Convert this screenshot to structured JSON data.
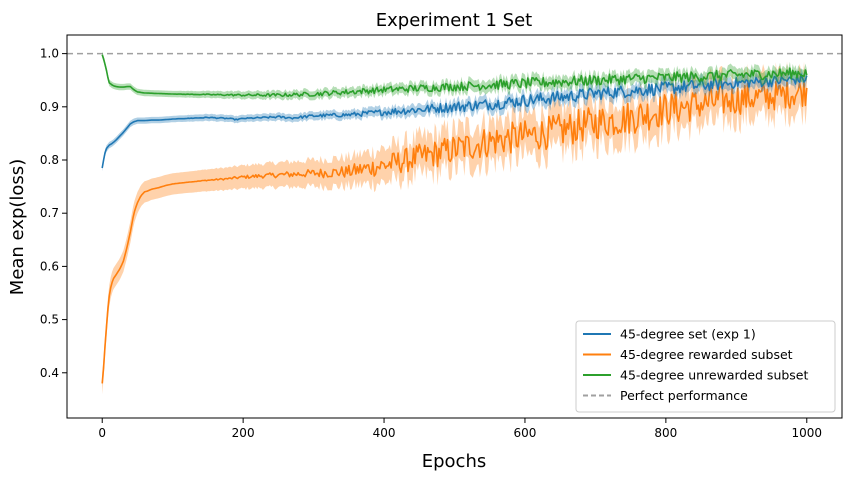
{
  "chart_data": {
    "type": "line",
    "title": "Experiment 1 Set",
    "xlabel": "Epochs",
    "ylabel": "Mean exp(loss)",
    "xlim": [
      -50,
      1050
    ],
    "ylim": [
      0.315,
      1.035
    ],
    "x_ticks": [
      0,
      200,
      400,
      600,
      800,
      1000
    ],
    "y_ticks": [
      0.4,
      0.5,
      0.6,
      0.7,
      0.8,
      0.9,
      1.0
    ],
    "legend_position": "lower-right",
    "grid": false,
    "reference_line": {
      "name": "Perfect performance",
      "y": 1.0,
      "color": "#a0a0a0",
      "style": "dashed"
    },
    "series": [
      {
        "name": "45-degree set (exp 1)",
        "color": "#1f77b4",
        "x": [
          0,
          2,
          5,
          10,
          15,
          20,
          25,
          30,
          35,
          40,
          45,
          50,
          60,
          70,
          80,
          100,
          150,
          180,
          190,
          200,
          250,
          270,
          300,
          350,
          400,
          450,
          500,
          550,
          600,
          650,
          700,
          750,
          800,
          850,
          900,
          950,
          1000
        ],
        "y": [
          0.785,
          0.8,
          0.82,
          0.828,
          0.832,
          0.838,
          0.845,
          0.852,
          0.86,
          0.868,
          0.872,
          0.874,
          0.874,
          0.875,
          0.875,
          0.877,
          0.88,
          0.878,
          0.876,
          0.878,
          0.881,
          0.879,
          0.883,
          0.885,
          0.89,
          0.895,
          0.9,
          0.905,
          0.912,
          0.918,
          0.925,
          0.93,
          0.935,
          0.94,
          0.945,
          0.948,
          0.953
        ],
        "band": 0.006,
        "noise": [
          0,
          0,
          0,
          0,
          0,
          0,
          0,
          0,
          0,
          0,
          0,
          0,
          0,
          0,
          0,
          0,
          0.001,
          0.001,
          0.001,
          0.001,
          0.002,
          0.002,
          0.003,
          0.004,
          0.006,
          0.008,
          0.01,
          0.011,
          0.012,
          0.012,
          0.012,
          0.012,
          0.012,
          0.012,
          0.01,
          0.01,
          0.01
        ]
      },
      {
        "name": "45-degree rewarded subset",
        "color": "#ff7f0e",
        "x": [
          0,
          2,
          5,
          8,
          10,
          12,
          15,
          20,
          25,
          30,
          35,
          40,
          45,
          50,
          55,
          60,
          65,
          70,
          80,
          90,
          100,
          120,
          150,
          180,
          200,
          250,
          300,
          350,
          400,
          450,
          500,
          550,
          600,
          650,
          700,
          750,
          800,
          850,
          900,
          950,
          1000
        ],
        "y": [
          0.38,
          0.41,
          0.47,
          0.52,
          0.545,
          0.56,
          0.575,
          0.585,
          0.595,
          0.61,
          0.635,
          0.665,
          0.7,
          0.72,
          0.733,
          0.74,
          0.742,
          0.745,
          0.748,
          0.752,
          0.755,
          0.758,
          0.762,
          0.765,
          0.768,
          0.772,
          0.775,
          0.778,
          0.79,
          0.805,
          0.82,
          0.835,
          0.845,
          0.855,
          0.87,
          0.88,
          0.895,
          0.905,
          0.915,
          0.92,
          0.93
        ],
        "band": 0.02,
        "noise": [
          0,
          0,
          0,
          0,
          0,
          0,
          0,
          0,
          0,
          0,
          0,
          0,
          0,
          0,
          0,
          0,
          0,
          0,
          0,
          0,
          0,
          0,
          0.001,
          0.002,
          0.003,
          0.005,
          0.008,
          0.012,
          0.02,
          0.025,
          0.028,
          0.03,
          0.03,
          0.032,
          0.032,
          0.032,
          0.032,
          0.03,
          0.03,
          0.028,
          0.028
        ]
      },
      {
        "name": "45-degree unrewarded subset",
        "color": "#2ca02c",
        "x": [
          0,
          2,
          5,
          8,
          10,
          15,
          20,
          25,
          30,
          35,
          40,
          45,
          50,
          60,
          80,
          100,
          150,
          200,
          250,
          300,
          350,
          400,
          450,
          500,
          550,
          600,
          650,
          700,
          750,
          800,
          850,
          900,
          950,
          1000
        ],
        "y": [
          0.998,
          0.99,
          0.975,
          0.955,
          0.945,
          0.94,
          0.938,
          0.937,
          0.937,
          0.938,
          0.938,
          0.932,
          0.928,
          0.926,
          0.925,
          0.924,
          0.923,
          0.922,
          0.922,
          0.924,
          0.928,
          0.932,
          0.935,
          0.938,
          0.941,
          0.944,
          0.947,
          0.95,
          0.953,
          0.955,
          0.957,
          0.96,
          0.962,
          0.964
        ],
        "band": 0.006,
        "noise": [
          0,
          0,
          0,
          0,
          0,
          0,
          0,
          0,
          0,
          0,
          0,
          0,
          0,
          0,
          0,
          0,
          0.001,
          0.002,
          0.003,
          0.004,
          0.005,
          0.006,
          0.007,
          0.008,
          0.009,
          0.01,
          0.01,
          0.01,
          0.01,
          0.01,
          0.01,
          0.01,
          0.01,
          0.01
        ]
      }
    ]
  }
}
